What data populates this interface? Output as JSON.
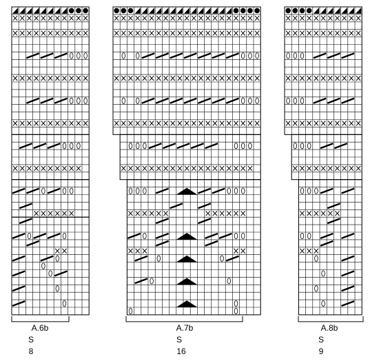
{
  "charts": [
    {
      "id": "A.6b",
      "label": "A.6b",
      "size_label": "S",
      "stitch_count": "8"
    },
    {
      "id": "A.7b",
      "label": "A.7b",
      "size_label": "S",
      "stitch_count": "16"
    },
    {
      "id": "A.8b",
      "label": "A.8b",
      "size_label": "S",
      "stitch_count": "9"
    }
  ],
  "symbols": {
    "purl_cross": "x-mark",
    "eyelet": "oval-hole",
    "decrease": "diagonal-bar",
    "cast_off": "black-dot",
    "half_square": "black-triangle-corner",
    "double_decrease": "black-arrowhead"
  }
}
